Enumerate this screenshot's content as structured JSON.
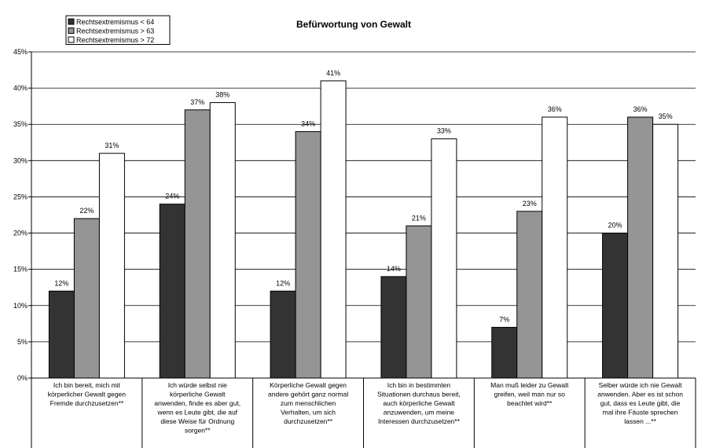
{
  "chart_data": {
    "type": "bar",
    "title": "Befürwortung von Gewalt",
    "xlabel": "",
    "ylabel": "",
    "ylim": [
      0,
      45
    ],
    "y_ticks": [
      "0%",
      "5%",
      "10%",
      "15%",
      "20%",
      "25%",
      "30%",
      "35%",
      "40%",
      "45%"
    ],
    "legend_position": "top-left",
    "categories": [
      [
        "Ich bin bereit, mich mit",
        "körperlicher Gewalt gegen",
        "Fremde durchzusetzen**"
      ],
      [
        "Ich würde selbst nie",
        "körperliche Gewalt",
        "anwenden, finde es aber gut,",
        "wenn es Leute gibt, die auf",
        "diese Weise für Ordnung",
        "sorgen**"
      ],
      [
        "Körperliche Gewalt gegen",
        "andere gehört ganz normal",
        "zum menschlichen",
        "Verhalten, um sich",
        "durchzusetzen**"
      ],
      [
        "Ich bin in bestimmten",
        "Situationen durchaus bereit,",
        "auch körperliche Gewalt",
        "anzuwenden, um meine",
        "Interessen durchzusetzen**"
      ],
      [
        "Man muß leider zu Gewalt",
        "greifen, weil man nur so",
        "beachtet wird**"
      ],
      [
        "Selber würde ich nie Gewalt",
        "anwenden. Aber es ist schon",
        "gut, dass es Leute gibt, die",
        "mal ihre Fäuste sprechen",
        "lassen ...**"
      ]
    ],
    "series": [
      {
        "name": "Rechtsextremismus < 64",
        "color": "#333333",
        "values": [
          12,
          24,
          12,
          14,
          7,
          20
        ],
        "labels": [
          "12%",
          "24%",
          "12%",
          "14%",
          "7%",
          "20%"
        ]
      },
      {
        "name": "Rechtsextremismus > 63",
        "color": "#959595",
        "values": [
          22,
          37,
          34,
          21,
          23,
          36
        ],
        "labels": [
          "22%",
          "37%",
          "34%",
          "21%",
          "23%",
          "36%"
        ]
      },
      {
        "name": "Rechtsextremismus > 72",
        "color": "#ffffff",
        "values": [
          31,
          38,
          41,
          33,
          36,
          35
        ],
        "labels": [
          "31%",
          "38%",
          "41%",
          "33%",
          "36%",
          "35%"
        ]
      }
    ]
  }
}
